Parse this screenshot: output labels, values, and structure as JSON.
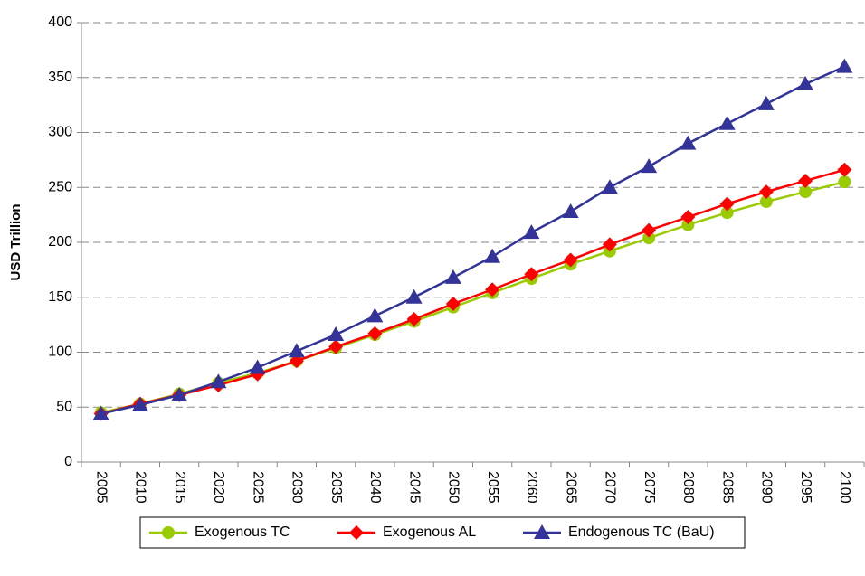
{
  "chart_data": {
    "type": "line",
    "y_label": "USD Trillion",
    "categories": [
      "2005",
      "2010",
      "2015",
      "2020",
      "2025",
      "2030",
      "2035",
      "2040",
      "2045",
      "2050",
      "2055",
      "2060",
      "2065",
      "2070",
      "2075",
      "2080",
      "2085",
      "2090",
      "2095",
      "2100"
    ],
    "series": [
      {
        "name": "Exogenous TC",
        "color": "#99cc00",
        "marker": "circle",
        "values": [
          45,
          53,
          62,
          72,
          81,
          92,
          104,
          116,
          128,
          141,
          154,
          167,
          180,
          192,
          204,
          216,
          227,
          237,
          246,
          255
        ]
      },
      {
        "name": "Exogenous AL",
        "color": "#ff0000",
        "marker": "diamond",
        "values": [
          44,
          53,
          61,
          70,
          80,
          92,
          105,
          117,
          130,
          144,
          157,
          171,
          184,
          198,
          211,
          223,
          235,
          246,
          256,
          266
        ]
      },
      {
        "name": "Endogenous TC (BaU)",
        "color": "#333399",
        "marker": "triangle",
        "values": [
          44,
          52,
          61,
          73,
          86,
          101,
          116,
          133,
          150,
          168,
          187,
          209,
          228,
          250,
          269,
          290,
          308,
          326,
          344,
          360
        ]
      }
    ],
    "ylim": [
      0,
      400
    ],
    "yticks": [
      0,
      50,
      100,
      150,
      200,
      250,
      300,
      350,
      400
    ],
    "grid": true,
    "legend": "bottom"
  }
}
